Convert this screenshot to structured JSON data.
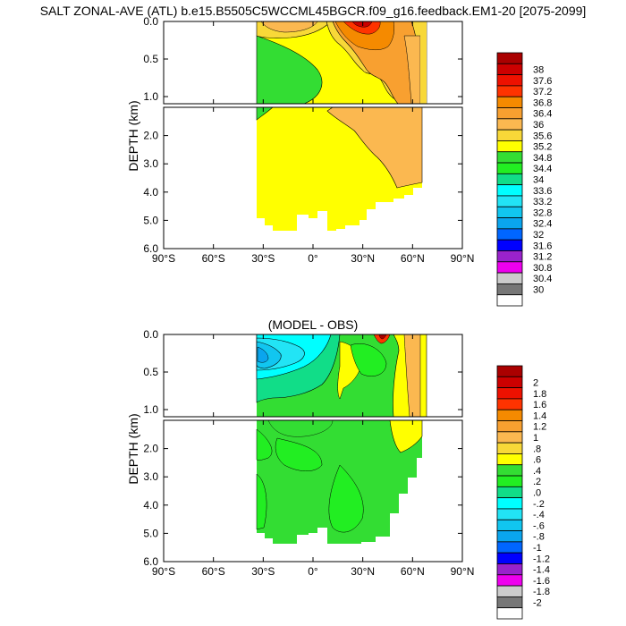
{
  "title": "SALT ZONAL-AVE (ATL) b.e15.B5505C5WCCML45BGCR.f09_g16.feedback.EM1-20 [2075-2099]",
  "chart_data": [
    {
      "type": "heatmap",
      "title": "",
      "ylabel": "DEPTH (km)",
      "xlabel": "",
      "x_ticks": [
        "90°S",
        "60°S",
        "30°S",
        "0°",
        "30°N",
        "60°N",
        "90°N"
      ],
      "xlim": [
        -90,
        90
      ],
      "y_ticks_upper": [
        "0.0",
        "0.5",
        "1.0"
      ],
      "y_ticks_lower": [
        "2.0",
        "3.0",
        "4.0",
        "5.0",
        "6.0"
      ],
      "ylim": [
        0,
        6
      ],
      "legend_position": "right",
      "colorbar_labels": [
        "38",
        "37.6",
        "37.2",
        "36.8",
        "36.4",
        "36",
        "35.6",
        "35.2",
        "34.8",
        "34.4",
        "34",
        "33.6",
        "33.2",
        "32.8",
        "32.4",
        "32",
        "31.6",
        "31.2",
        "30.8",
        "30.4",
        "30"
      ],
      "colorbar_colors": [
        "#aa0000",
        "#cc0000",
        "#ee1100",
        "#ff3300",
        "#f58a00",
        "#f8a030",
        "#fbb850",
        "#f8d838",
        "#ffff00",
        "#33dd33",
        "#22ee22",
        "#11dd88",
        "#00ffff",
        "#22e4f5",
        "#11c6f0",
        "#0aa5ee",
        "#0066ff",
        "#0000ff",
        "#9922cc",
        "#ee00ee",
        "#cccccc",
        "#777777",
        "#ffffff"
      ]
    },
    {
      "type": "heatmap",
      "title": "(MODEL - OBS)",
      "ylabel": "DEPTH (km)",
      "xlabel": "",
      "x_ticks": [
        "90°S",
        "60°S",
        "30°S",
        "0°",
        "30°N",
        "60°N",
        "90°N"
      ],
      "xlim": [
        -90,
        90
      ],
      "y_ticks_upper": [
        "0.0",
        "0.5",
        "1.0"
      ],
      "y_ticks_lower": [
        "2.0",
        "3.0",
        "4.0",
        "5.0",
        "6.0"
      ],
      "ylim": [
        0,
        6
      ],
      "legend_position": "right",
      "colorbar_labels": [
        "2",
        "1.8",
        "1.6",
        "1.4",
        "1.2",
        "1",
        ".8",
        ".6",
        ".4",
        ".2",
        ".0",
        "-.2",
        "-.4",
        "-.6",
        "-.8",
        "-1",
        "-1.2",
        "-1.4",
        "-1.6",
        "-1.8",
        "-2"
      ],
      "colorbar_colors": [
        "#aa0000",
        "#cc0000",
        "#ee1100",
        "#ff3300",
        "#f58a00",
        "#f8a030",
        "#fbb850",
        "#f8d838",
        "#ffff00",
        "#33dd33",
        "#22ee22",
        "#11dd88",
        "#00ffff",
        "#22e4f5",
        "#11c6f0",
        "#0aa5ee",
        "#0066ff",
        "#0000ff",
        "#9922cc",
        "#ee00ee",
        "#cccccc",
        "#777777",
        "#ffffff"
      ]
    }
  ]
}
